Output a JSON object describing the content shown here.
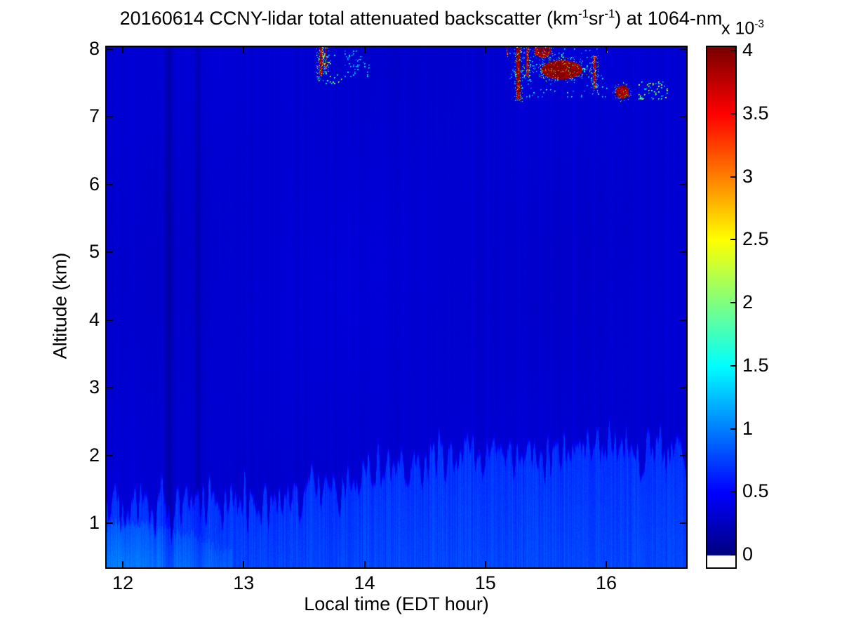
{
  "title_segments": [
    {
      "t": "20160614 CCNY-lidar total attenuated backscatter (km"
    },
    {
      "sup": "-1"
    },
    {
      "t": "sr"
    },
    {
      "sup": "-1"
    },
    {
      "t": ") at 1064-nm"
    }
  ],
  "colorbar": {
    "exponent_segments": [
      {
        "t": "x 10"
      },
      {
        "sup": "-3"
      }
    ],
    "tick_labels": [
      "4",
      "3.5",
      "3",
      "2.5",
      "2",
      "1.5",
      "1",
      "0.5",
      "0"
    ],
    "tick_values": [
      4,
      3.5,
      3,
      2.5,
      2,
      1.5,
      1,
      0.5,
      0
    ],
    "range": [
      0,
      4
    ],
    "colormap": "jet"
  },
  "chart_data": {
    "type": "heatmap",
    "title": "20160614 CCNY-lidar total attenuated backscatter (km⁻¹sr⁻¹) at 1064-nm",
    "xlabel": "Local time (EDT hour)",
    "ylabel": "Altitude (km)",
    "x_ticks": [
      12,
      13,
      14,
      15,
      16
    ],
    "y_ticks": [
      1,
      2,
      3,
      4,
      5,
      6,
      7,
      8
    ],
    "xlim": [
      11.866,
      16.662
    ],
    "ylim": [
      0.35,
      8.03
    ],
    "clim": [
      0,
      4
    ],
    "value_scale": "1e-3 km⁻¹sr⁻¹",
    "wavelength_nm": 1064,
    "colormap": "jet",
    "grid": false,
    "legend": "colorbar-right",
    "background_value": 0.32,
    "boundary_layer": {
      "value": 0.68,
      "jitter_km": 0.2,
      "top_km": [
        [
          11.87,
          1.25
        ],
        [
          12.4,
          1.28
        ],
        [
          12.8,
          1.32
        ],
        [
          13.2,
          1.4
        ],
        [
          13.6,
          1.55
        ],
        [
          14.0,
          1.8
        ],
        [
          14.4,
          1.95
        ],
        [
          14.8,
          2.05
        ],
        [
          15.2,
          2.12
        ],
        [
          15.6,
          2.18
        ],
        [
          16.0,
          2.18
        ],
        [
          16.66,
          2.15
        ]
      ]
    },
    "surface_plume": {
      "t_range": [
        11.87,
        12.9
      ],
      "top_km": [
        [
          11.87,
          1.0
        ],
        [
          12.4,
          0.92
        ],
        [
          12.9,
          0.6
        ]
      ],
      "extra_value": 0.3
    },
    "gap_stripes": [
      {
        "t": 12.38,
        "width_h": 0.05,
        "delta": -0.16
      },
      {
        "t": 12.62,
        "width_h": 0.04,
        "delta": -0.12
      }
    ],
    "clouds": [
      {
        "type": "streak",
        "t": 13.633,
        "alt_range": [
          7.62,
          8.03
        ],
        "width_h": 0.022,
        "value": 4.0,
        "density": 0.85,
        "fringe": true
      },
      {
        "type": "streak",
        "t": 13.675,
        "alt_range": [
          7.72,
          8.03
        ],
        "width_h": 0.014,
        "value": 3.9,
        "density": 0.7,
        "fringe": true
      },
      {
        "type": "specks",
        "t_range": [
          13.62,
          13.8
        ],
        "alt_range": [
          7.5,
          7.95
        ],
        "value_range": [
          1.0,
          2.6
        ],
        "density": 0.1
      },
      {
        "type": "specks",
        "t_range": [
          13.84,
          14.03
        ],
        "alt_range": [
          7.6,
          7.97
        ],
        "value_range": [
          0.8,
          1.7
        ],
        "density": 0.13
      },
      {
        "type": "streak",
        "t": 15.18,
        "alt_range": [
          7.9,
          8.03
        ],
        "width_h": 0.012,
        "value": 3.6,
        "density": 0.6,
        "fringe": false
      },
      {
        "type": "streak",
        "t": 15.27,
        "alt_range": [
          7.28,
          8.03
        ],
        "width_h": 0.03,
        "value": 4.1,
        "density": 0.92,
        "fringe": true
      },
      {
        "type": "streak",
        "t": 15.345,
        "alt_range": [
          7.6,
          8.03
        ],
        "width_h": 0.02,
        "value": 3.9,
        "density": 0.8,
        "fringe": true
      },
      {
        "type": "blob",
        "t": 15.47,
        "alt": 7.98,
        "dt": 0.07,
        "dalt": 0.1,
        "value": 4.0,
        "density": 0.85,
        "fringe": true
      },
      {
        "type": "blob",
        "t": 15.63,
        "alt": 7.7,
        "dt": 0.17,
        "dalt": 0.14,
        "value": 4.15,
        "density": 0.96,
        "fringe": true
      },
      {
        "type": "streak",
        "t": 15.9,
        "alt_range": [
          7.42,
          7.9
        ],
        "width_h": 0.022,
        "value": 3.8,
        "density": 0.75,
        "fringe": true
      },
      {
        "type": "specks",
        "t_range": [
          15.2,
          16.0
        ],
        "alt_range": [
          7.3,
          8.0
        ],
        "value_range": [
          0.9,
          2.0
        ],
        "density": 0.05
      },
      {
        "type": "blob",
        "t": 16.13,
        "alt": 7.37,
        "dt": 0.055,
        "dalt": 0.1,
        "value": 4.0,
        "density": 0.9,
        "fringe": true
      },
      {
        "type": "specks",
        "t_range": [
          16.27,
          16.5
        ],
        "alt_range": [
          7.28,
          7.52
        ],
        "value_range": [
          1.0,
          2.7
        ],
        "density": 0.18
      }
    ]
  }
}
